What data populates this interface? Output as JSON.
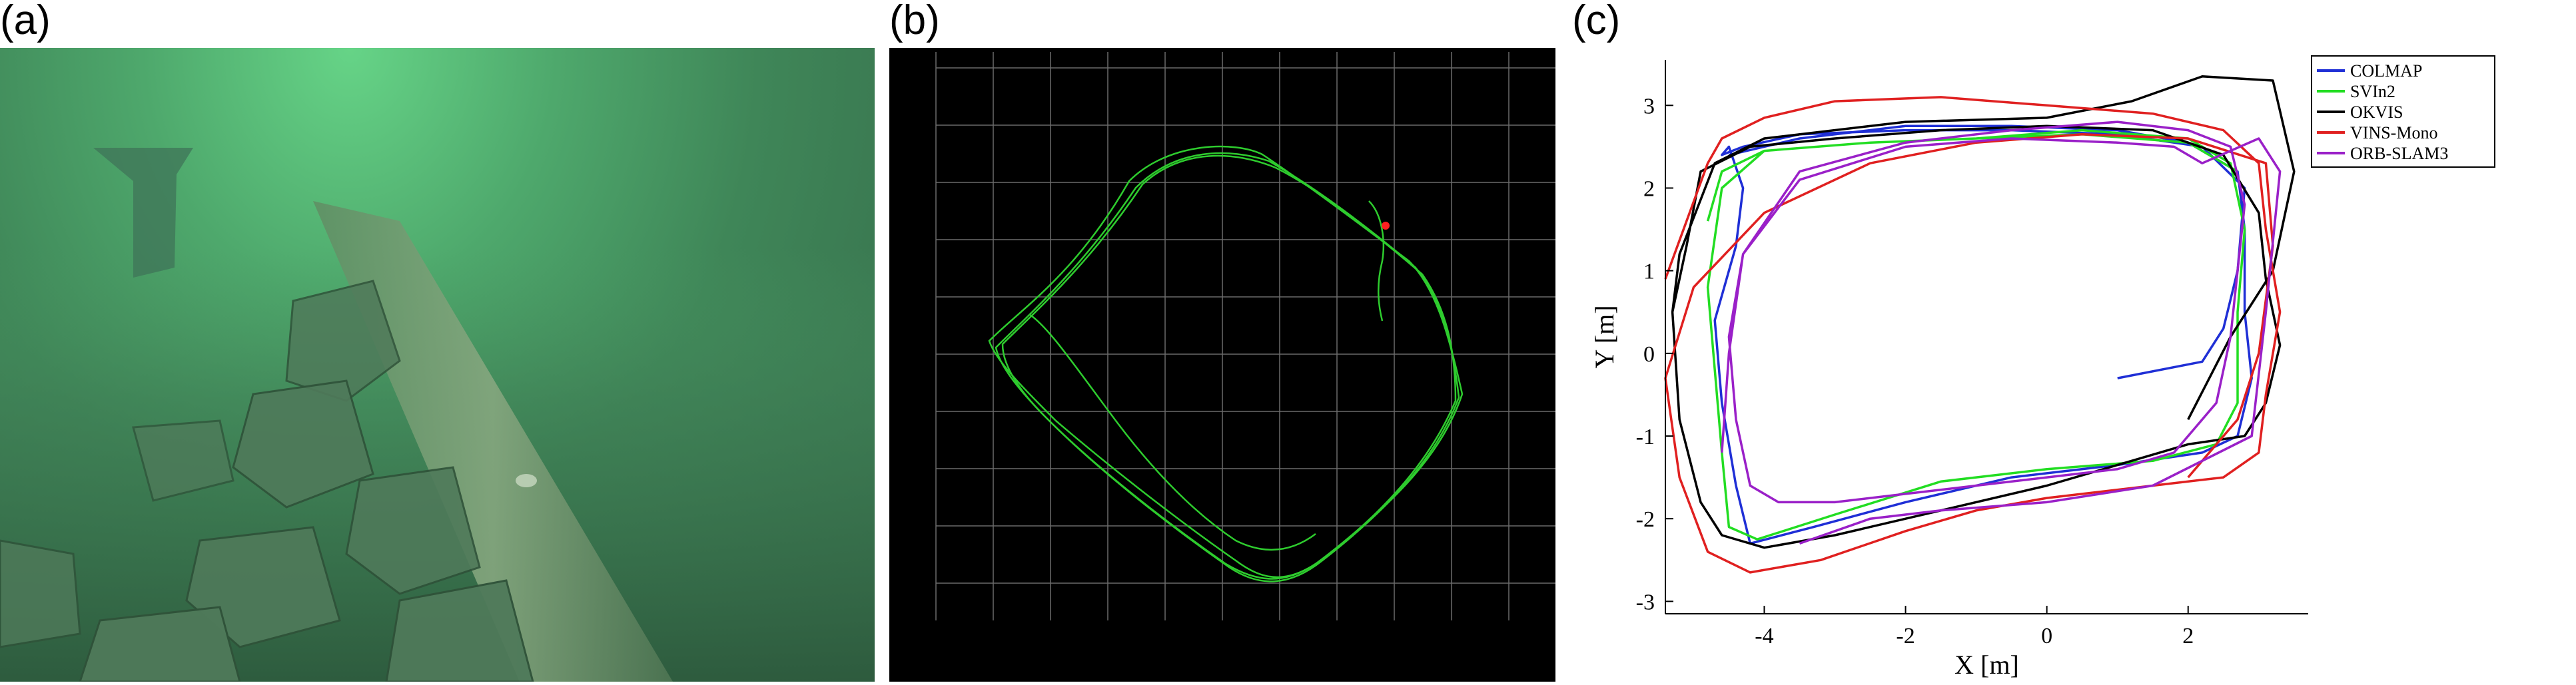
{
  "panels": {
    "a": {
      "label": "(a)"
    },
    "b": {
      "label": "(b)"
    },
    "c": {
      "label": "(c)"
    }
  },
  "colors": {
    "colmap": "#1f2fd6",
    "svin2": "#22dd22",
    "okvis": "#000000",
    "vins": "#e02020",
    "orb": "#9a20c8",
    "track_green": "#2ecc2e",
    "grid_gray": "#6b6b6b"
  },
  "chart_data": {
    "type": "line",
    "xlabel": "X [m]",
    "ylabel": "Y [m]",
    "xlim": [
      -5.4,
      3.7
    ],
    "ylim": [
      -3.15,
      3.55
    ],
    "xticks": [
      -4,
      -2,
      0,
      2
    ],
    "yticks": [
      -3,
      -2,
      -1,
      0,
      1,
      2,
      3
    ],
    "legend_position": "top-right",
    "grid": false,
    "series": [
      {
        "name": "COLMAP",
        "color": "#1f2fd6",
        "x": [
          -4.5,
          -3.5,
          -2,
          -0.5,
          1,
          2,
          2.7,
          2.8,
          2.8,
          2.9,
          2.7,
          2.2,
          1,
          -0.5,
          -2,
          -3.3,
          -4.2,
          -4.4,
          -4.6,
          -4.7,
          -4.4,
          -4.3,
          -4.5,
          -4.6,
          -4.3,
          -3.5,
          -2,
          -0.5,
          1,
          2.2,
          2.8,
          2.7,
          2.5,
          2.2,
          1
        ],
        "y": [
          2.4,
          2.6,
          2.75,
          2.75,
          2.7,
          2.55,
          2.2,
          1.5,
          0.5,
          -0.3,
          -1,
          -1.2,
          -1.35,
          -1.5,
          -1.8,
          -2.1,
          -2.3,
          -1.6,
          -0.6,
          0.4,
          1.3,
          2,
          2.5,
          2.4,
          2.5,
          2.65,
          2.7,
          2.7,
          2.65,
          2.5,
          2,
          1,
          0.3,
          -0.1,
          -0.3
        ]
      },
      {
        "name": "SVIn2",
        "color": "#22dd22",
        "x": [
          -4.8,
          -4.6,
          -4,
          -2.5,
          -1,
          0.5,
          2,
          2.6,
          2.8,
          2.7,
          2.7,
          2.4,
          1.5,
          0,
          -1.5,
          -3,
          -4.1,
          -4.5,
          -4.6,
          -4.7,
          -4.8,
          -4.6,
          -4,
          -2.5,
          -1,
          0.5,
          2,
          2.7
        ],
        "y": [
          1.6,
          2.2,
          2.45,
          2.55,
          2.6,
          2.7,
          2.6,
          2.3,
          1.5,
          0.5,
          -0.6,
          -1.1,
          -1.3,
          -1.4,
          -1.55,
          -1.95,
          -2.25,
          -2.1,
          -1.2,
          -0.2,
          0.8,
          2,
          2.45,
          2.55,
          2.6,
          2.65,
          2.55,
          2.2
        ]
      },
      {
        "name": "OKVIS",
        "color": "#000000",
        "x": [
          -5.3,
          -5.2,
          -4.9,
          -4.6,
          -4,
          -3,
          -1.5,
          0,
          1.2,
          2,
          2.8,
          3.1,
          3.3,
          3.1,
          3,
          2.5,
          1.5,
          0,
          -1.5,
          -3,
          -4.2,
          -4.9,
          -5.1,
          -5.3,
          -5.2,
          -4.7,
          -4,
          -2,
          0,
          1.2,
          2.2,
          3.2,
          3.5,
          3.2,
          2.6,
          2
        ],
        "y": [
          0.5,
          -0.8,
          -1.8,
          -2.2,
          -2.35,
          -2.2,
          -1.9,
          -1.6,
          -1.3,
          -1.1,
          -1,
          -0.6,
          0.1,
          0.9,
          1.7,
          2.4,
          2.7,
          2.75,
          2.7,
          2.6,
          2.5,
          2.2,
          1.3,
          0.5,
          1.2,
          2.3,
          2.6,
          2.8,
          2.85,
          3.05,
          3.35,
          3.3,
          2.2,
          1,
          0.2,
          -0.8
        ]
      },
      {
        "name": "VINS-Mono",
        "color": "#e02020",
        "x": [
          -5.4,
          -5.1,
          -4.8,
          -4.6,
          -4,
          -3,
          -1.5,
          0,
          1.5,
          2.5,
          3,
          3.1,
          3.3,
          3.1,
          3,
          2.5,
          1.5,
          0,
          -1,
          -2,
          -3.2,
          -4.2,
          -4.8,
          -5.2,
          -5.4,
          -5,
          -4,
          -2.5,
          -1,
          0.5,
          2,
          3.1,
          3.2,
          3,
          2.7,
          2
        ],
        "y": [
          0.9,
          1.6,
          2.3,
          2.6,
          2.85,
          3.05,
          3.1,
          3,
          2.9,
          2.7,
          2.3,
          1.5,
          0.5,
          -0.5,
          -1.2,
          -1.5,
          -1.6,
          -1.75,
          -1.9,
          -2.15,
          -2.5,
          -2.65,
          -2.4,
          -1.5,
          -0.3,
          0.8,
          1.7,
          2.3,
          2.55,
          2.65,
          2.6,
          2.3,
          1.3,
          0,
          -0.8,
          -1.5
        ]
      },
      {
        "name": "ORB-SLAM3",
        "color": "#9a20c8",
        "x": [
          -4.6,
          -4.5,
          -4.3,
          -3.5,
          -2,
          -0.5,
          1,
          2,
          2.6,
          2.8,
          2.7,
          2.6,
          2.4,
          1.8,
          1,
          0,
          -1,
          -2,
          -3,
          -3.8,
          -4.2,
          -4.4,
          -4.5,
          -4.3,
          -3.5,
          -2,
          -0.5,
          1,
          1.8,
          2.2,
          3,
          3.3,
          3.1,
          2.9,
          1.5,
          0,
          -1.5,
          -2.5,
          -3.5
        ],
        "y": [
          -1.2,
          0,
          1.2,
          2.2,
          2.55,
          2.7,
          2.8,
          2.7,
          2.5,
          1.8,
          1,
          0.2,
          -0.6,
          -1.2,
          -1.4,
          -1.5,
          -1.6,
          -1.7,
          -1.8,
          -1.8,
          -1.6,
          -0.8,
          0.2,
          1.2,
          2.1,
          2.5,
          2.6,
          2.55,
          2.5,
          2.3,
          2.6,
          2.2,
          0.5,
          -1,
          -1.6,
          -1.8,
          -1.9,
          -2,
          -2.3
        ]
      }
    ]
  }
}
